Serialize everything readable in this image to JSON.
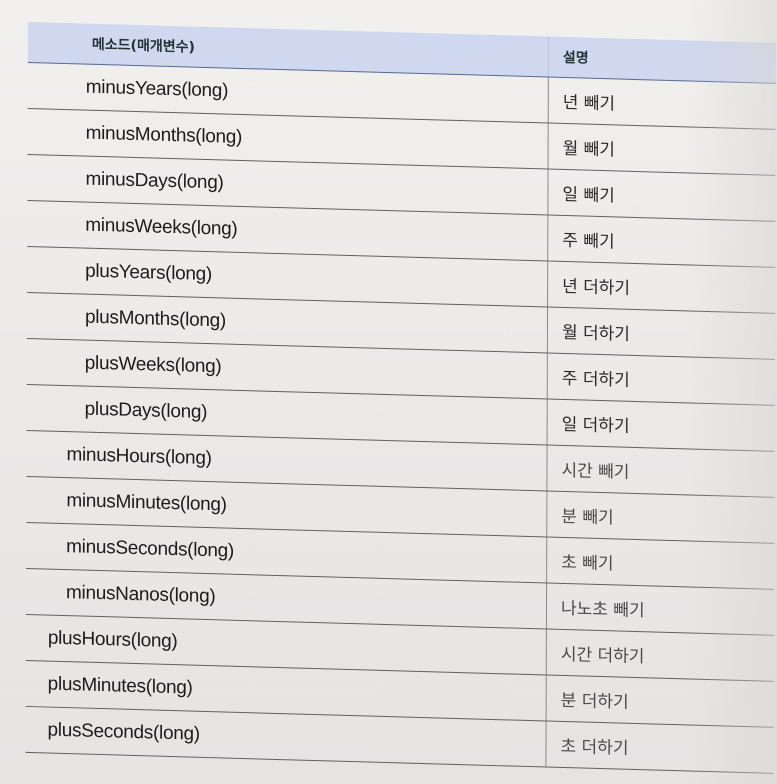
{
  "table": {
    "headers": {
      "method": "메소드(매개변수)",
      "description": "설명"
    },
    "rows": [
      {
        "method": "minusYears(long)",
        "description": "년 빼기"
      },
      {
        "method": "minusMonths(long)",
        "description": "월 빼기"
      },
      {
        "method": "minusDays(long)",
        "description": "일 빼기"
      },
      {
        "method": "minusWeeks(long)",
        "description": "주 빼기"
      },
      {
        "method": "plusYears(long)",
        "description": "년 더하기"
      },
      {
        "method": "plusMonths(long)",
        "description": "월 더하기"
      },
      {
        "method": "plusWeeks(long)",
        "description": "주 더하기"
      },
      {
        "method": "plusDays(long)",
        "description": "일 더하기"
      },
      {
        "method": "minusHours(long)",
        "description": "시간 빼기"
      },
      {
        "method": "minusMinutes(long)",
        "description": "분 빼기"
      },
      {
        "method": "minusSeconds(long)",
        "description": "초 빼기"
      },
      {
        "method": "minusNanos(long)",
        "description": "나노초 빼기"
      },
      {
        "method": "plusHours(long)",
        "description": "시간 더하기"
      },
      {
        "method": "plusMinutes(long)",
        "description": "분 더하기"
      },
      {
        "method": "plusSeconds(long)",
        "description": "초 더하기"
      }
    ]
  },
  "colors": {
    "header_background": "#cfd8ef",
    "header_rule": "#596b95",
    "row_rule": "#616161",
    "paper": "#ebe9e6"
  }
}
